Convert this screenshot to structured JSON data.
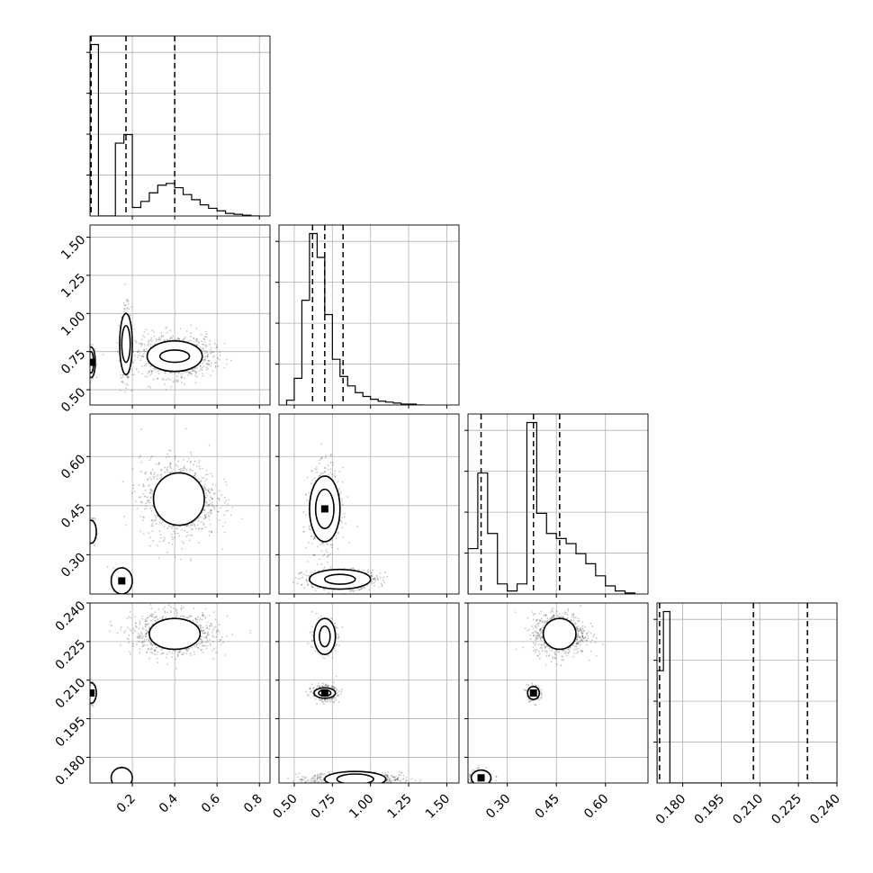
{
  "chart_data": {
    "type": "corner",
    "parameters": [
      {
        "range": [
          0.0,
          0.85
        ],
        "ticks": [
          0.2,
          0.4,
          0.6,
          0.8
        ],
        "tick_labels": [
          "0.2",
          "0.4",
          "0.6",
          "0.8"
        ],
        "quantiles": [
          0.005,
          0.17,
          0.4
        ],
        "hist_edges": [
          0.0,
          0.04,
          0.08,
          0.12,
          0.16,
          0.2,
          0.24,
          0.28,
          0.32,
          0.36,
          0.4,
          0.44,
          0.48,
          0.52,
          0.56,
          0.6,
          0.64,
          0.68,
          0.72,
          0.76,
          0.8
        ],
        "hist_counts": [
          200,
          0,
          0,
          85,
          95,
          10,
          17,
          27,
          36,
          38,
          33,
          25,
          19,
          13,
          9,
          6,
          3,
          2,
          1,
          0
        ]
      },
      {
        "range": [
          0.4,
          1.58
        ],
        "ticks": [
          0.5,
          0.75,
          1.0,
          1.25,
          1.5
        ],
        "tick_labels": [
          "0.50",
          "0.75",
          "1.00",
          "1.25",
          "1.50"
        ],
        "quantiles": [
          0.62,
          0.7,
          0.82
        ],
        "hist_edges": [
          0.45,
          0.5,
          0.55,
          0.6,
          0.65,
          0.7,
          0.75,
          0.8,
          0.85,
          0.9,
          0.95,
          1.0,
          1.05,
          1.1,
          1.15,
          1.2,
          1.25,
          1.3,
          1.35
        ],
        "hist_counts": [
          5,
          28,
          110,
          180,
          155,
          95,
          48,
          30,
          20,
          13,
          9,
          6,
          4,
          3,
          2,
          1,
          1,
          0
        ]
      },
      {
        "range": [
          0.18,
          0.73
        ],
        "ticks": [
          0.3,
          0.45,
          0.6
        ],
        "tick_labels": [
          "0.30",
          "0.45",
          "0.60"
        ],
        "quantiles": [
          0.22,
          0.38,
          0.46
        ],
        "hist_edges": [
          0.18,
          0.21,
          0.24,
          0.27,
          0.3,
          0.33,
          0.36,
          0.39,
          0.42,
          0.45,
          0.48,
          0.51,
          0.54,
          0.57,
          0.6,
          0.63,
          0.66,
          0.69
        ],
        "hist_counts": [
          45,
          120,
          60,
          10,
          3,
          10,
          170,
          80,
          60,
          55,
          50,
          40,
          30,
          18,
          8,
          3,
          1
        ]
      },
      {
        "range": [
          0.17,
          0.24
        ],
        "ticks": [
          0.18,
          0.195,
          0.21,
          0.225,
          0.24
        ],
        "tick_labels": [
          "0.180",
          "0.195",
          "0.210",
          "0.225",
          "0.240"
        ],
        "quantiles": [
          0.171,
          0.2075,
          0.2285
        ],
        "hist_edges": [
          0.17,
          0.1725,
          0.175,
          0.1775,
          0.18,
          0.1825,
          0.185,
          0.1875,
          0.19,
          0.1925,
          0.195,
          0.1975,
          0.2,
          0.2025,
          0.205,
          0.2075,
          0.21,
          0.2125,
          0.215,
          0.2175,
          0.22,
          0.2225,
          0.225,
          0.2275,
          0.23,
          0.2325,
          0.235,
          0.2375,
          0.24
        ],
        "hist_counts": [
          95,
          145,
          0,
          0,
          0,
          0,
          0,
          0,
          0,
          0,
          0,
          0,
          0,
          0,
          0,
          0,
          0,
          0,
          0,
          0,
          0,
          0,
          0,
          0,
          0,
          0,
          0,
          0
        ]
      }
    ],
    "scatter_clusters": {
      "1_0": [
        {
          "mx": 0.005,
          "my": 0.68,
          "sx": 0.01,
          "sy": 0.05,
          "n": 260,
          "contours": [
            [
              0.02,
              0.1
            ],
            [
              0.012,
              0.07
            ]
          ],
          "peak": true
        },
        {
          "mx": 0.17,
          "my": 0.8,
          "sx": 0.012,
          "sy": 0.12,
          "n": 320,
          "contours": [
            [
              0.03,
              0.2
            ],
            [
              0.02,
              0.12
            ]
          ]
        },
        {
          "mx": 0.4,
          "my": 0.72,
          "sx": 0.09,
          "sy": 0.07,
          "n": 900,
          "contours": [
            [
              0.13,
              0.1
            ],
            [
              0.07,
              0.04
            ]
          ]
        }
      ],
      "2_0": [
        {
          "mx": 0.005,
          "my": 0.37,
          "sx": 0.01,
          "sy": 0.02,
          "n": 160,
          "contours": [
            [
              0.025,
              0.035
            ]
          ]
        },
        {
          "mx": 0.15,
          "my": 0.22,
          "sx": 0.02,
          "sy": 0.02,
          "n": 200,
          "contours": [
            [
              0.05,
              0.04
            ]
          ],
          "peak": true
        },
        {
          "mx": 0.42,
          "my": 0.47,
          "sx": 0.09,
          "sy": 0.06,
          "n": 900,
          "contours": [
            [
              0.12,
              0.08
            ]
          ]
        }
      ],
      "2_1": [
        {
          "mx": 0.7,
          "my": 0.44,
          "sx": 0.05,
          "sy": 0.06,
          "n": 700,
          "contours": [
            [
              0.1,
              0.1
            ],
            [
              0.06,
              0.06
            ]
          ],
          "peak": true
        },
        {
          "mx": 0.8,
          "my": 0.225,
          "sx": 0.12,
          "sy": 0.015,
          "n": 600,
          "contours": [
            [
              0.2,
              0.03
            ],
            [
              0.1,
              0.015
            ]
          ]
        }
      ],
      "3_0": [
        {
          "mx": 0.005,
          "my": 0.205,
          "sx": 0.01,
          "sy": 0.002,
          "n": 160,
          "contours": [
            [
              0.025,
              0.004
            ]
          ],
          "peak": true
        },
        {
          "mx": 0.15,
          "my": 0.172,
          "sx": 0.02,
          "sy": 0.002,
          "n": 160,
          "contours": [
            [
              0.05,
              0.004
            ]
          ]
        },
        {
          "mx": 0.4,
          "my": 0.228,
          "sx": 0.1,
          "sy": 0.004,
          "n": 900,
          "contours": [
            [
              0.12,
              0.006
            ]
          ]
        }
      ],
      "3_1": [
        {
          "mx": 0.7,
          "my": 0.227,
          "sx": 0.035,
          "sy": 0.003,
          "n": 500,
          "contours": [
            [
              0.07,
              0.007
            ],
            [
              0.035,
              0.004
            ]
          ]
        },
        {
          "mx": 0.7,
          "my": 0.205,
          "sx": 0.04,
          "sy": 0.0015,
          "n": 400,
          "contours": [
            [
              0.07,
              0.002
            ],
            [
              0.04,
              0.0012
            ]
          ],
          "peak": true
        },
        {
          "mx": 0.9,
          "my": 0.1715,
          "sx": 0.15,
          "sy": 0.0012,
          "n": 700,
          "contours": [
            [
              0.2,
              0.003
            ],
            [
              0.12,
              0.002
            ]
          ]
        }
      ],
      "3_2": [
        {
          "mx": 0.46,
          "my": 0.228,
          "sx": 0.04,
          "sy": 0.004,
          "n": 900,
          "contours": [
            [
              0.05,
              0.006
            ]
          ]
        },
        {
          "mx": 0.38,
          "my": 0.205,
          "sx": 0.01,
          "sy": 0.0015,
          "n": 200,
          "contours": [
            [
              0.018,
              0.0025
            ]
          ],
          "peak": true
        },
        {
          "mx": 0.22,
          "my": 0.172,
          "sx": 0.02,
          "sy": 0.0015,
          "n": 200,
          "contours": [
            [
              0.03,
              0.003
            ]
          ],
          "peak": true
        }
      ]
    }
  }
}
